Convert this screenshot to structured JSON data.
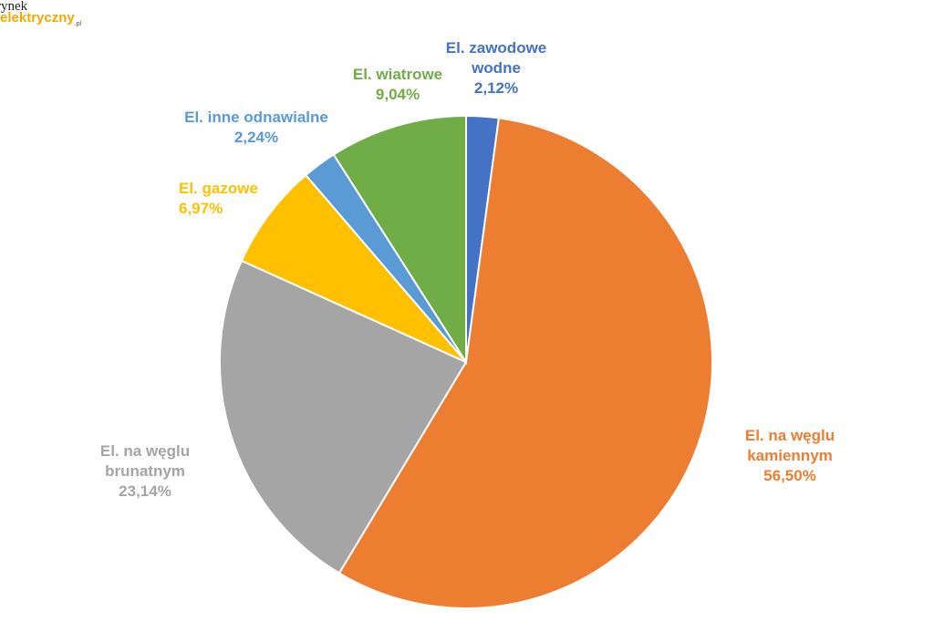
{
  "logo": {
    "line1": "rynek",
    "line2": "elektryczny",
    "suffix": ".pl"
  },
  "chart_data": {
    "type": "pie",
    "title": "",
    "start_angle_deg": 0,
    "direction": "clockwise",
    "slices": [
      {
        "label_lines": [
          "El. zawodowe",
          "wodne"
        ],
        "value_label": "2,12%",
        "value": 2.12,
        "color": "#4472c4"
      },
      {
        "label_lines": [
          "El. na węglu",
          "kamiennym"
        ],
        "value_label": "56,50%",
        "value": 56.5,
        "color": "#ed7d31"
      },
      {
        "label_lines": [
          "El. na węglu",
          "brunatnym"
        ],
        "value_label": "23,14%",
        "value": 23.14,
        "color": "#a5a5a5"
      },
      {
        "label_lines": [
          "El. gazowe"
        ],
        "value_label": "6,97%",
        "value": 6.97,
        "color": "#ffc000"
      },
      {
        "label_lines": [
          "El. inne odnawialne"
        ],
        "value_label": "2,24%",
        "value": 2.24,
        "color": "#5b9bd5"
      },
      {
        "label_lines": [
          "El. wiatrowe"
        ],
        "value_label": "9,04%",
        "value": 9.04,
        "color": "#70ad47"
      }
    ]
  }
}
